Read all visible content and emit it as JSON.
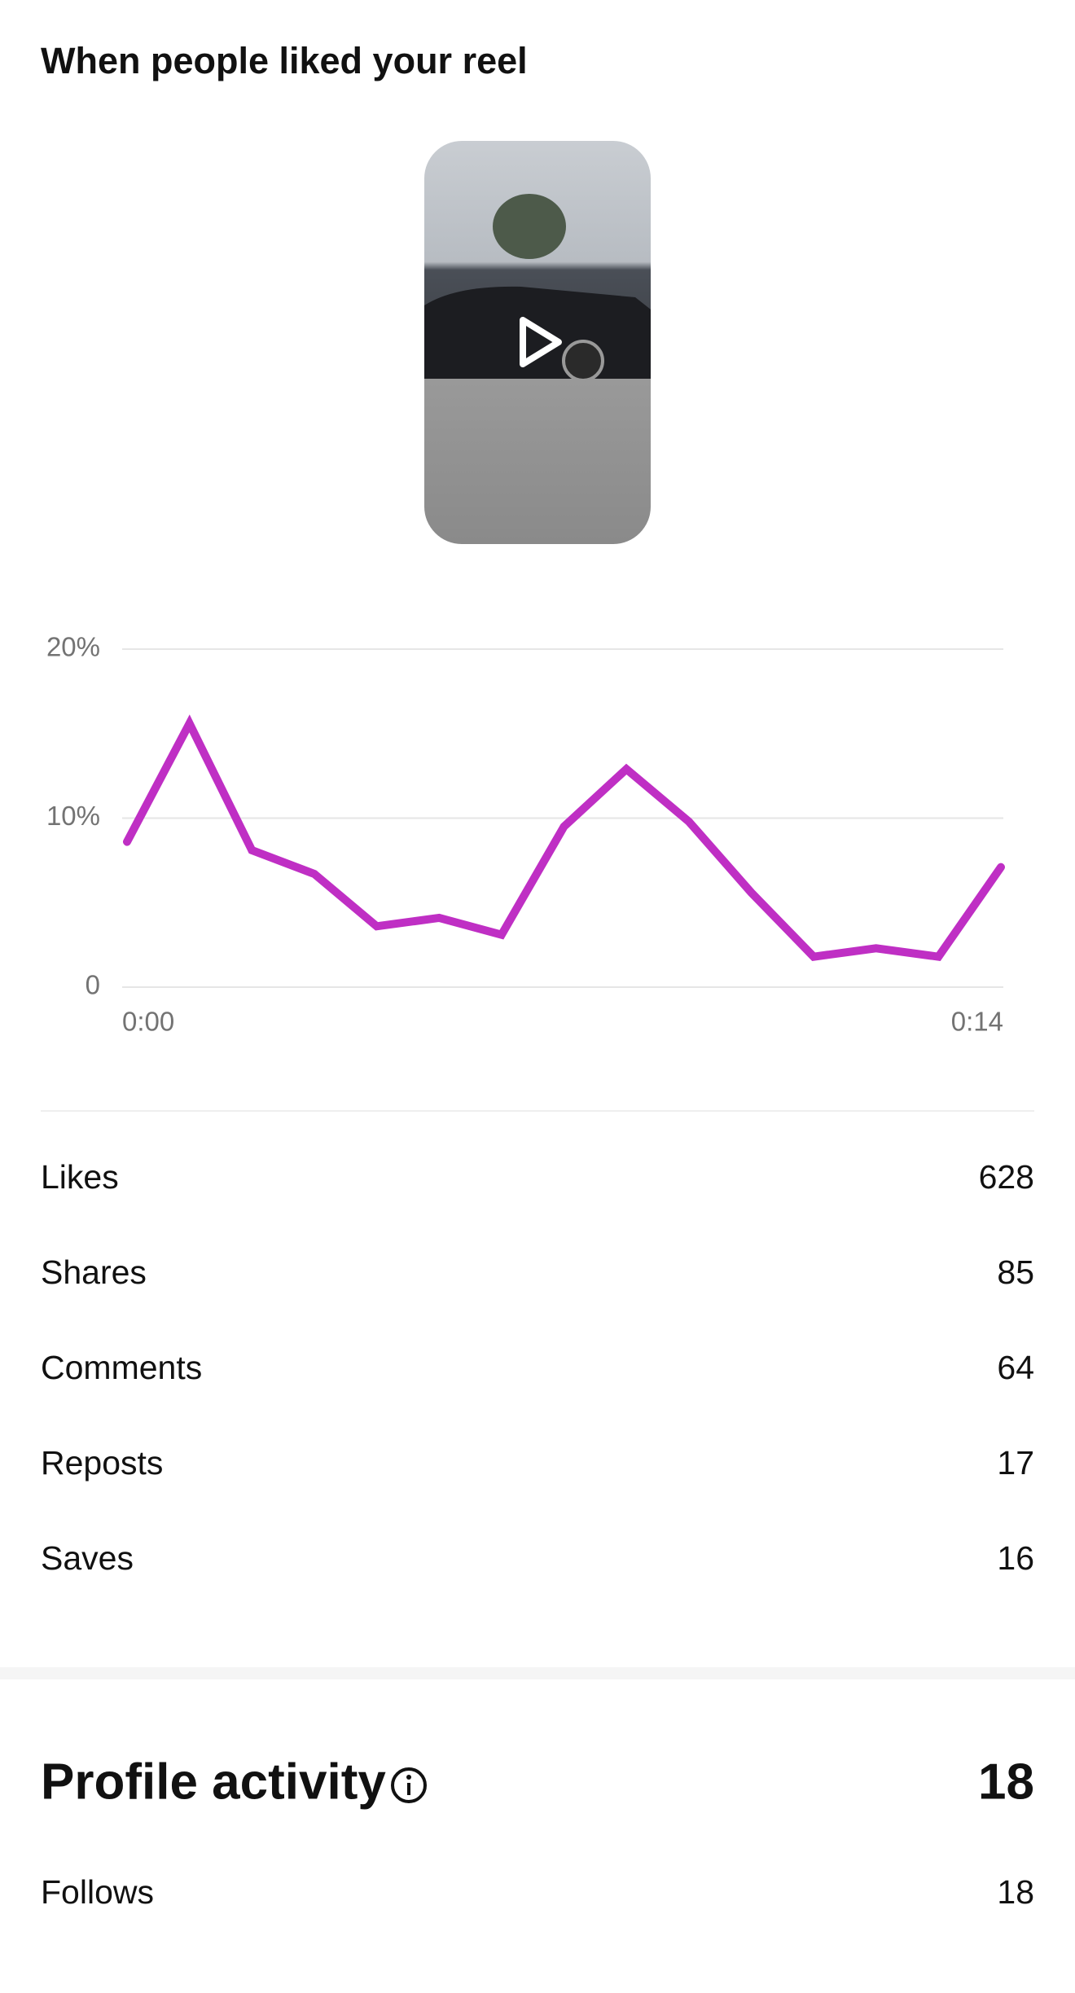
{
  "chart_data": {
    "type": "line",
    "title": "When people liked your reel",
    "x": [
      0,
      1,
      2,
      3,
      4,
      5,
      6,
      7,
      8,
      9,
      10,
      11,
      12,
      13,
      14
    ],
    "series": [
      {
        "color": "#bf2fc4",
        "values": [
          8.6,
          15.6,
          8.1,
          6.7,
          3.6,
          4.1,
          3.1,
          9.5,
          12.9,
          9.8,
          5.6,
          1.8,
          2.3,
          1.8,
          7.1
        ]
      }
    ],
    "xlim": [
      0,
      14
    ],
    "xticks": [
      {
        "value": 0,
        "label": "0:00"
      },
      {
        "value": 14,
        "label": "0:14"
      }
    ],
    "ylim": [
      0,
      20
    ],
    "yticks": [
      0,
      {
        "value": 10,
        "label": "10%"
      },
      {
        "value": 20,
        "label": "20%"
      }
    ],
    "grid": true
  },
  "metrics": [
    {
      "label": "Likes",
      "value": 628
    },
    {
      "label": "Shares",
      "value": 85
    },
    {
      "label": "Comments",
      "value": 64
    },
    {
      "label": "Reposts",
      "value": 17
    },
    {
      "label": "Saves",
      "value": 16
    }
  ],
  "profile_activity": {
    "title": "Profile activity",
    "total": 18,
    "rows": [
      {
        "label": "Follows",
        "value": 18
      }
    ]
  }
}
